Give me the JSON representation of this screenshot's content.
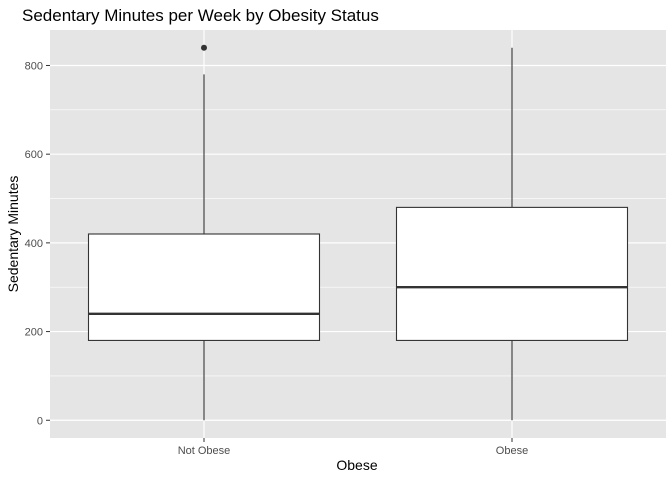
{
  "chart_data": {
    "type": "boxplot",
    "title": "Sedentary Minutes per Week by Obesity Status",
    "xlabel": "Obese",
    "ylabel": "Sedentary Minutes",
    "categories": [
      "Not Obese",
      "Obese"
    ],
    "boxes": [
      {
        "category": "Not Obese",
        "min": 0,
        "q1": 180,
        "median": 240,
        "q3": 420,
        "max": 780,
        "outliers": [
          840
        ]
      },
      {
        "category": "Obese",
        "min": 0,
        "q1": 180,
        "median": 300,
        "q3": 480,
        "max": 840,
        "outliers": []
      }
    ],
    "ylim": [
      -40,
      880
    ],
    "y_ticks": [
      0,
      200,
      400,
      600,
      800
    ],
    "y_minor_ticks": [
      100,
      300,
      500,
      700
    ],
    "grid": true,
    "colors": {
      "panel_background": "#e5e5e5",
      "grid_line": "#ffffff",
      "box_fill": "#ffffff",
      "box_stroke": "#333333",
      "tick_label": "#4d4d4d",
      "text": "#000000"
    }
  }
}
